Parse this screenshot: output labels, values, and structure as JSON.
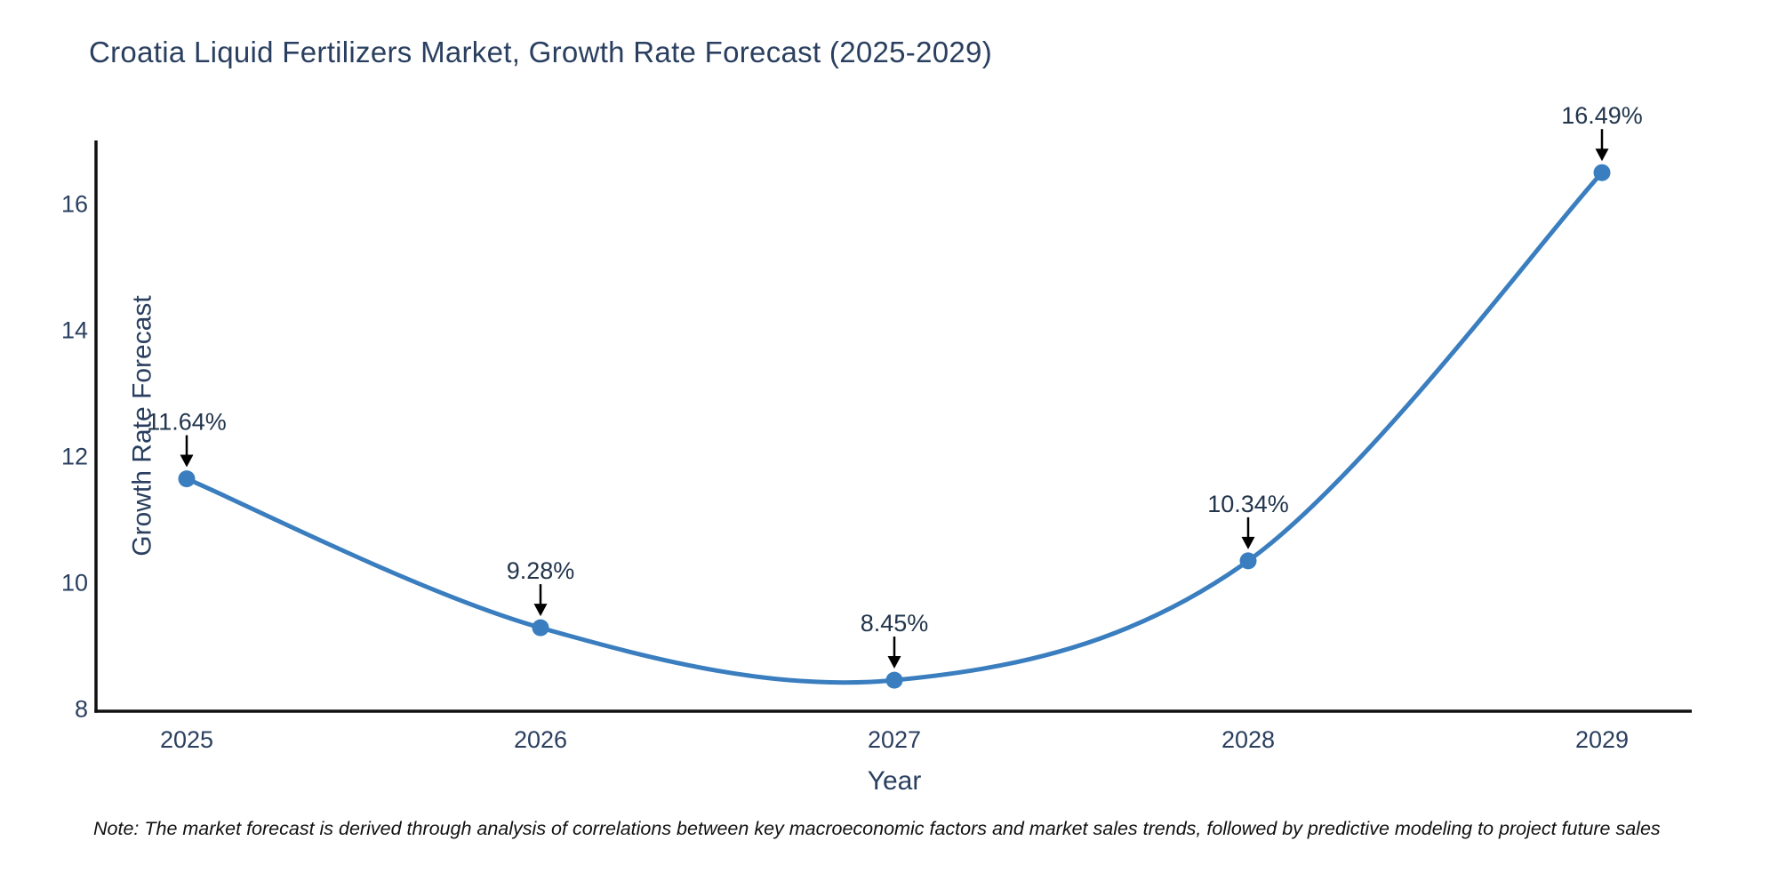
{
  "chart_data": {
    "type": "line",
    "title": "Croatia Liquid Fertilizers Market, Growth Rate Forecast (2025-2029)",
    "xlabel": "Year",
    "ylabel": "Growth Rate Forecast",
    "categories": [
      "2025",
      "2026",
      "2027",
      "2028",
      "2029"
    ],
    "series": [
      {
        "name": "Growth Rate Forecast",
        "values": [
          11.64,
          9.28,
          8.45,
          10.34,
          16.49
        ]
      }
    ],
    "point_labels": [
      "11.64%",
      "9.28%",
      "8.45%",
      "10.34%",
      "16.49%"
    ],
    "y_ticks": [
      8,
      10,
      12,
      14,
      16
    ],
    "ylim": [
      7.96,
      17.05
    ],
    "grid": false,
    "legend_position": "none",
    "line_shape": "spline",
    "annotation_arrows": "down-to-point",
    "colors": {
      "line": "#3a7ebf",
      "marker": "#3a7ebf",
      "axis_line": "#111111",
      "title_text": "#2a3f5f",
      "tick_text": "#2a3f5f",
      "annotation_text": "#22354c",
      "arrow": "#000000",
      "background": "#ffffff",
      "note_text": "#111111"
    },
    "note": "Note: The market forecast is derived through analysis of correlations between key macroeconomic factors and market sales trends, followed by predictive modeling to project future sales"
  }
}
